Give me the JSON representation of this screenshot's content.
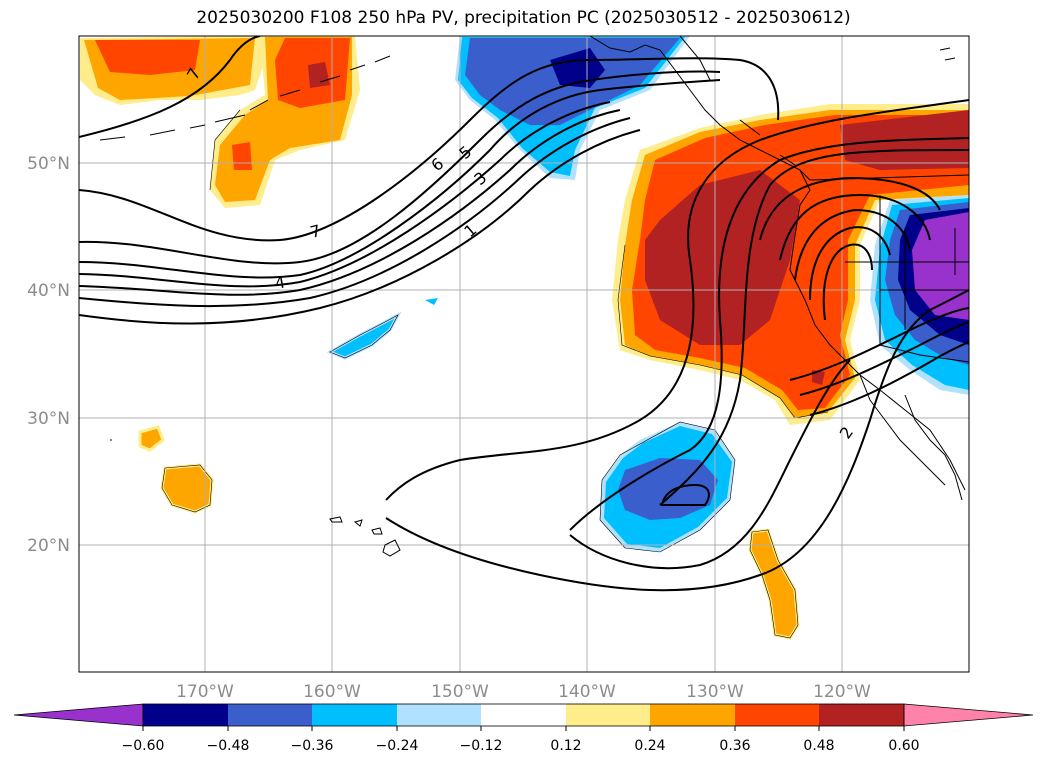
{
  "title": "2025030200 F108 250 hPa PV, precipitation PC (2025030512 - 2025030612)",
  "map": {
    "lon_labels": [
      "170°W",
      "160°W",
      "150°W",
      "140°W",
      "130°W",
      "120°W"
    ],
    "lat_labels": [
      "20°N",
      "30°N",
      "40°N",
      "50°N"
    ],
    "contour_labels": [
      "1",
      "2",
      "3",
      "4",
      "5",
      "6",
      "7",
      "7"
    ],
    "extent": {
      "lon": [
        -180,
        -110
      ],
      "lat": [
        10,
        60
      ]
    }
  },
  "colorbar": {
    "ticks": [
      "−0.60",
      "−0.48",
      "−0.36",
      "−0.24",
      "−0.12",
      "0.12",
      "0.24",
      "0.36",
      "0.48",
      "0.60"
    ],
    "colors": [
      "#9932cc",
      "#00008b",
      "#3a5fcd",
      "#00bfff",
      "#b0e2ff",
      "#ffffff",
      "#ffec8b",
      "#ffa500",
      "#ff4500",
      "#b22222",
      "#ff82ab"
    ]
  }
}
